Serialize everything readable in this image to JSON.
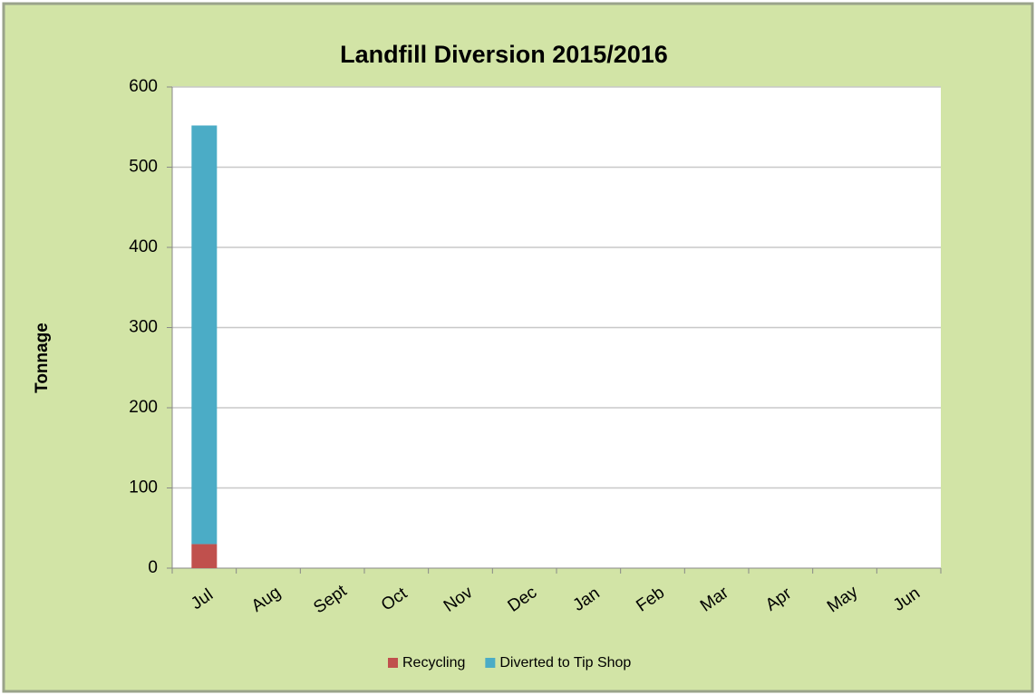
{
  "chart_data": {
    "type": "stacked_bar",
    "title": "Landfill Diversion 2015/2016",
    "y_label": "Tonnage",
    "categories": [
      "Jul",
      "Aug",
      "Sept",
      "Oct",
      "Nov",
      "Dec",
      "Jan",
      "Feb",
      "Mar",
      "Apr",
      "May",
      "Jun"
    ],
    "series": [
      {
        "name": "Recycling",
        "color": "#c0504d",
        "values": [
          30,
          null,
          null,
          null,
          null,
          null,
          null,
          null,
          null,
          null,
          null,
          null
        ]
      },
      {
        "name": "Diverted to Tip Shop",
        "color": "#4bacc6",
        "values": [
          522,
          null,
          null,
          null,
          null,
          null,
          null,
          null,
          null,
          null,
          null,
          null
        ]
      }
    ],
    "ylim": [
      0,
      600
    ],
    "yticks": [
      0,
      100,
      200,
      300,
      400,
      500,
      600
    ],
    "grid": true,
    "legend": "bottom"
  }
}
